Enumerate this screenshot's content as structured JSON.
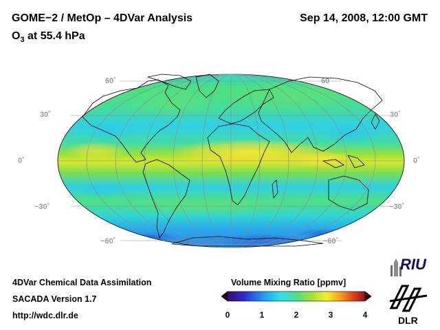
{
  "header": {
    "title": "GOME−2 / MetOp – 4DVar Analysis",
    "datetime": "Sep 14, 2008, 12:00 GMT",
    "subtitle_prefix": "O",
    "subtitle_sub": "3",
    "subtitle_suffix": " at 55.4 hPa"
  },
  "map": {
    "projection": "Hammer-Aitoff",
    "lat_labels_left": [
      "60˚",
      "30˚",
      "0˚",
      "−30˚",
      "−60˚"
    ],
    "lat_labels_right": [
      "60˚",
      "30˚",
      "0˚",
      "−30˚",
      "−60˚"
    ]
  },
  "colorbar": {
    "title": "Volume Mixing Ratio [ppmv]",
    "ticks": [
      "0",
      "1",
      "2",
      "3",
      "4"
    ],
    "range": [
      0,
      4
    ],
    "colors": [
      "#3a0a6e",
      "#2b2bd8",
      "#1f9cf0",
      "#30dff0",
      "#4de08a",
      "#9ae03a",
      "#f2ef2a",
      "#f5a020",
      "#e03a1a",
      "#8a1a1a"
    ]
  },
  "footer": {
    "line1": "4DVar Chemical Data Assimilation",
    "line2": "SACADA Version 1.7",
    "line3": "http://wdc.dlr.de"
  },
  "logos": {
    "riu": "RIU",
    "dlr": "DLR"
  }
}
